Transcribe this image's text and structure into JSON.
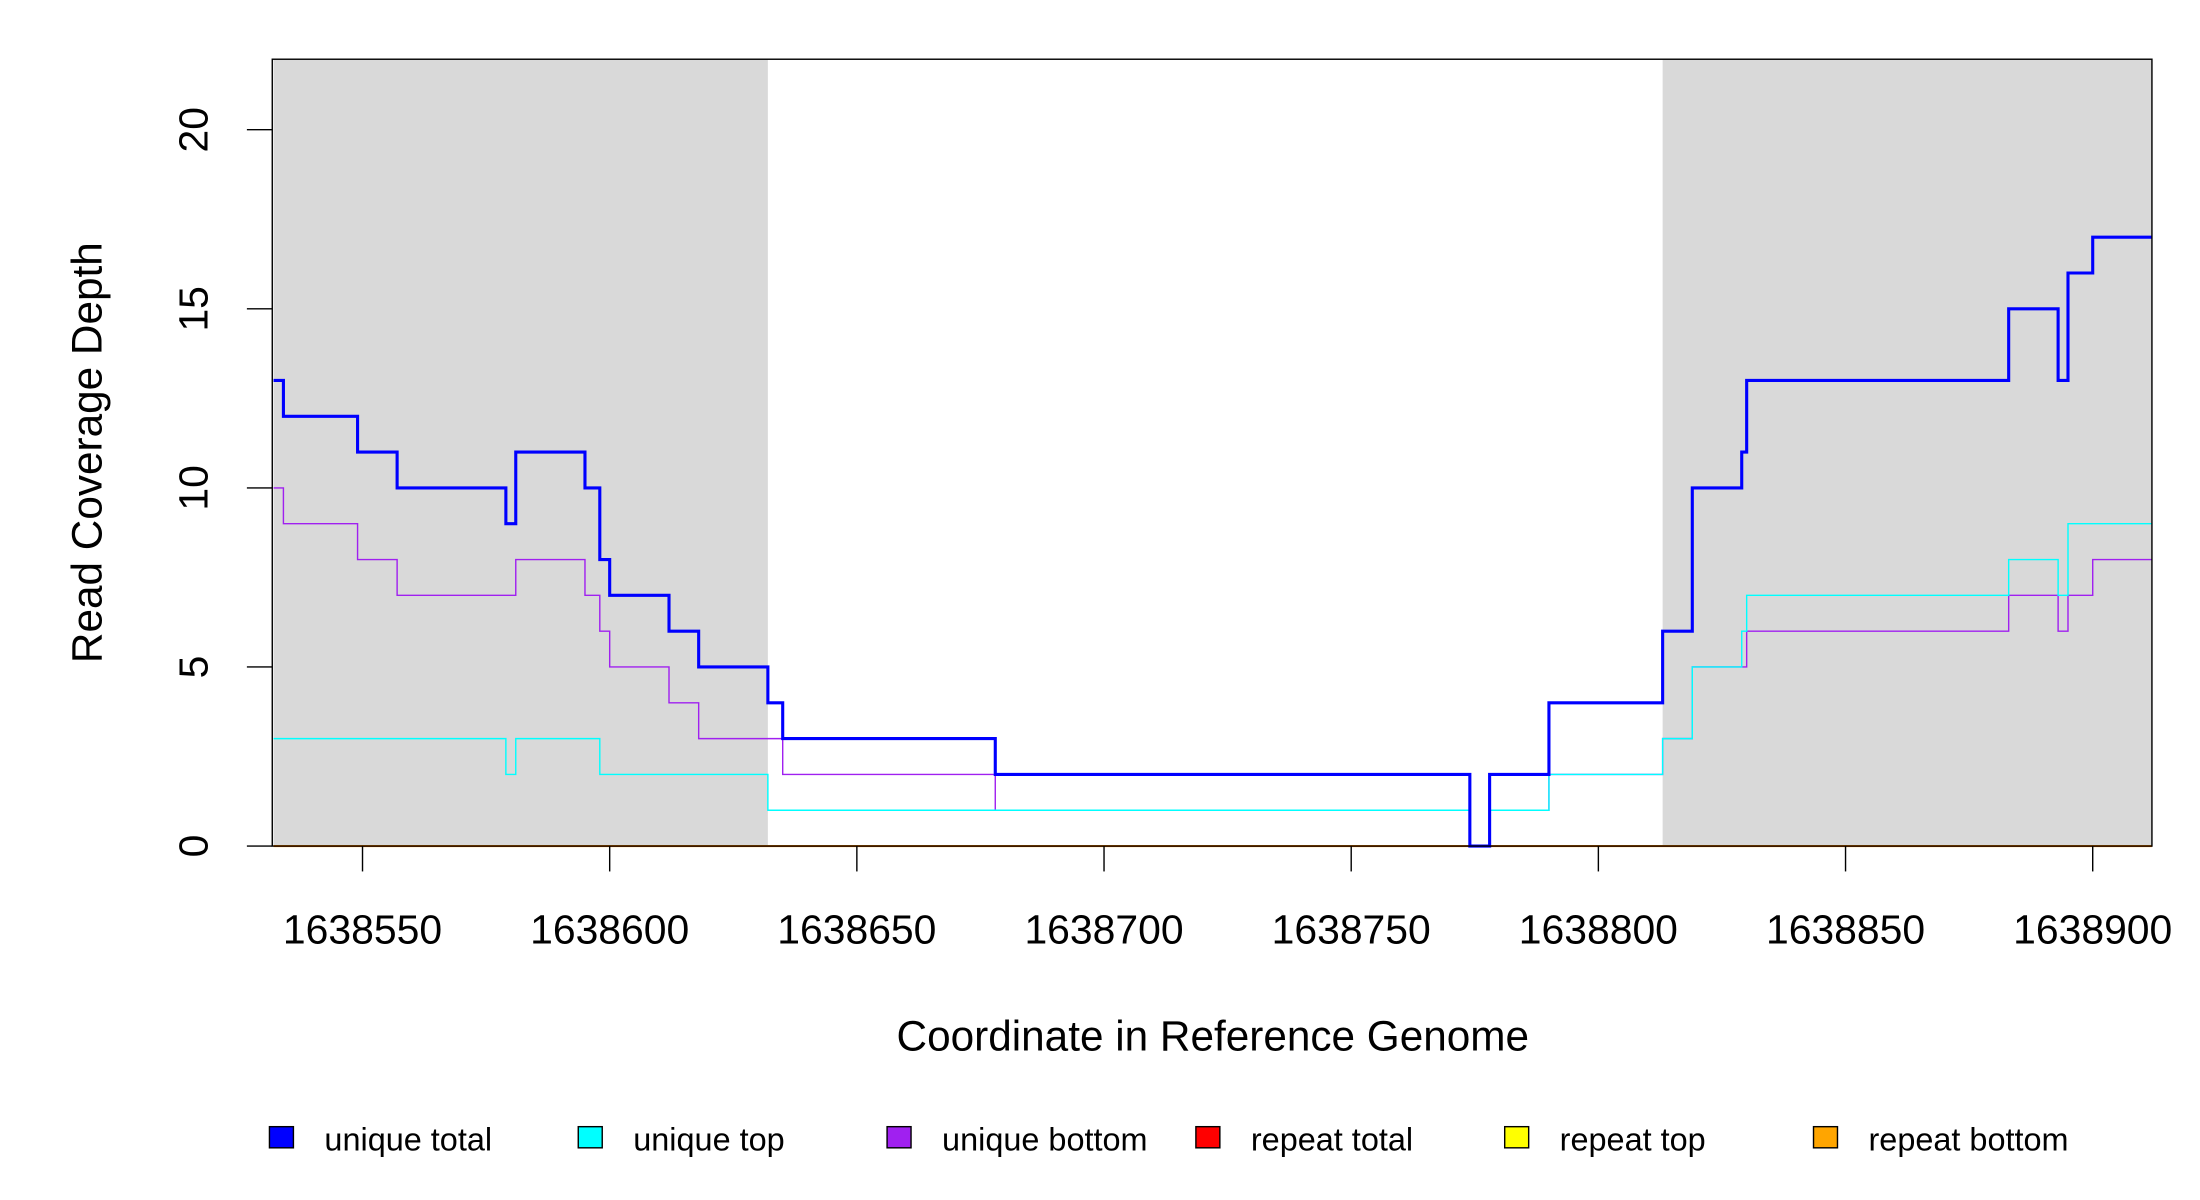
{
  "chart_data": {
    "type": "line",
    "step": true,
    "xlabel": "Coordinate in Reference Genome",
    "ylabel": "Read Coverage Depth",
    "xlim": [
      1638532,
      1638912
    ],
    "ylim": [
      0,
      22
    ],
    "x_ticks": [
      1638550,
      1638600,
      1638650,
      1638700,
      1638750,
      1638800,
      1638850,
      1638900
    ],
    "y_ticks": [
      0,
      5,
      10,
      15,
      20
    ],
    "shaded_regions": [
      [
        1638532,
        1638632
      ],
      [
        1638813,
        1638912
      ]
    ],
    "shade_color": "#d9d9d9",
    "legend_position": "bottom",
    "series": [
      {
        "name": "unique total",
        "color": "#0000ff",
        "width": 2.2,
        "steps": [
          [
            1638532,
            13
          ],
          [
            1638534,
            12
          ],
          [
            1638549,
            11
          ],
          [
            1638557,
            10
          ],
          [
            1638579,
            9
          ],
          [
            1638581,
            11
          ],
          [
            1638595,
            10
          ],
          [
            1638598,
            8
          ],
          [
            1638600,
            7
          ],
          [
            1638612,
            6
          ],
          [
            1638618,
            5
          ],
          [
            1638632,
            4
          ],
          [
            1638635,
            3
          ],
          [
            1638678,
            2
          ],
          [
            1638774,
            0
          ],
          [
            1638778,
            2
          ],
          [
            1638790,
            4
          ],
          [
            1638813,
            6
          ],
          [
            1638819,
            10
          ],
          [
            1638829,
            11
          ],
          [
            1638830,
            13
          ],
          [
            1638883,
            15
          ],
          [
            1638893,
            13
          ],
          [
            1638895,
            16
          ],
          [
            1638900,
            17
          ]
        ]
      },
      {
        "name": "unique top",
        "color": "#00ffff",
        "width": 1,
        "steps": [
          [
            1638532,
            3
          ],
          [
            1638579,
            2
          ],
          [
            1638581,
            3
          ],
          [
            1638598,
            2
          ],
          [
            1638632,
            1
          ],
          [
            1638774,
            0
          ],
          [
            1638778,
            1
          ],
          [
            1638790,
            2
          ],
          [
            1638813,
            3
          ],
          [
            1638819,
            5
          ],
          [
            1638829,
            6
          ],
          [
            1638830,
            7
          ],
          [
            1638883,
            8
          ],
          [
            1638893,
            7
          ],
          [
            1638895,
            9
          ]
        ]
      },
      {
        "name": "unique bottom",
        "color": "#a020f0",
        "width": 1,
        "steps": [
          [
            1638532,
            10
          ],
          [
            1638534,
            9
          ],
          [
            1638549,
            8
          ],
          [
            1638557,
            7
          ],
          [
            1638581,
            8
          ],
          [
            1638595,
            7
          ],
          [
            1638598,
            6
          ],
          [
            1638600,
            5
          ],
          [
            1638612,
            4
          ],
          [
            1638618,
            3
          ],
          [
            1638635,
            2
          ],
          [
            1638678,
            1
          ],
          [
            1638774,
            0
          ],
          [
            1638778,
            1
          ],
          [
            1638790,
            2
          ],
          [
            1638813,
            3
          ],
          [
            1638819,
            5
          ],
          [
            1638830,
            6
          ],
          [
            1638883,
            7
          ],
          [
            1638893,
            6
          ],
          [
            1638895,
            7
          ],
          [
            1638900,
            8
          ]
        ]
      },
      {
        "name": "repeat total",
        "color": "#ff0000",
        "width": 1,
        "steps": [
          [
            1638532,
            0
          ]
        ]
      },
      {
        "name": "repeat top",
        "color": "#ffff00",
        "width": 1,
        "steps": [
          [
            1638532,
            0
          ]
        ]
      },
      {
        "name": "repeat bottom",
        "color": "#ffa500",
        "width": 1.5,
        "steps": [
          [
            1638532,
            0
          ]
        ]
      }
    ]
  }
}
